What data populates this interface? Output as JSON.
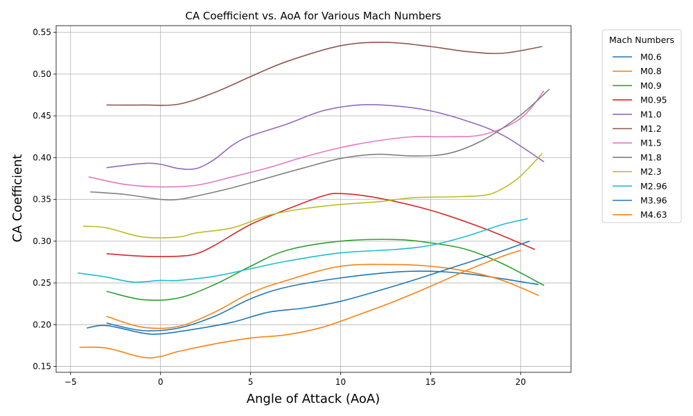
{
  "chart_data": {
    "type": "line",
    "title": "CA Coefficient vs. AoA for Various Mach Numbers",
    "xlabel": "Angle of Attack (AoA)",
    "ylabel": "CA Coefficient",
    "xlim": [
      -5.8,
      22.8
    ],
    "ylim": [
      0.143,
      0.558
    ],
    "xticks": [
      -5,
      0,
      5,
      10,
      15,
      20
    ],
    "xtick_labels": [
      "−5",
      "0",
      "5",
      "10",
      "15",
      "20"
    ],
    "yticks": [
      0.15,
      0.2,
      0.25,
      0.3,
      0.35,
      0.4,
      0.45,
      0.5,
      0.55
    ],
    "ytick_labels": [
      "0.15",
      "0.20",
      "0.25",
      "0.30",
      "0.35",
      "0.40",
      "0.45",
      "0.50",
      "0.55"
    ],
    "grid": true,
    "legend": {
      "title": "Mach Numbers",
      "placement": "outside-right"
    },
    "series": [
      {
        "name": "M0.6",
        "color": "#1f77b4",
        "x": [
          -3,
          -1,
          1,
          3,
          5,
          7,
          10,
          13,
          15,
          17,
          19,
          21
        ],
        "y": [
          0.202,
          0.193,
          0.196,
          0.21,
          0.231,
          0.245,
          0.256,
          0.263,
          0.264,
          0.261,
          0.255,
          0.248
        ]
      },
      {
        "name": "M0.8",
        "color": "#ff7f0e",
        "x": [
          -3,
          -1,
          1,
          3,
          5,
          7,
          10,
          13,
          15,
          17,
          19,
          21
        ],
        "y": [
          0.21,
          0.197,
          0.198,
          0.215,
          0.238,
          0.253,
          0.27,
          0.272,
          0.27,
          0.264,
          0.253,
          0.235
        ]
      },
      {
        "name": "M0.9",
        "color": "#2ca02c",
        "x": [
          -3,
          -1,
          1,
          3,
          5,
          7,
          10,
          13,
          15,
          17,
          19,
          21.3
        ],
        "y": [
          0.24,
          0.23,
          0.232,
          0.248,
          0.27,
          0.289,
          0.3,
          0.302,
          0.298,
          0.29,
          0.273,
          0.247
        ]
      },
      {
        "name": "M0.95",
        "color": "#d62728",
        "x": [
          -3,
          -1,
          1,
          2,
          3,
          5,
          7,
          9,
          10,
          12,
          15,
          18,
          20.8
        ],
        "y": [
          0.285,
          0.282,
          0.282,
          0.285,
          0.295,
          0.32,
          0.338,
          0.354,
          0.357,
          0.352,
          0.337,
          0.315,
          0.29
        ]
      },
      {
        "name": "M1.0",
        "color": "#9467bd",
        "x": [
          -3,
          -1,
          0,
          1,
          2,
          3,
          4,
          5,
          7,
          9,
          11,
          13,
          15,
          17,
          19,
          21.3
        ],
        "y": [
          0.388,
          0.393,
          0.392,
          0.387,
          0.387,
          0.398,
          0.415,
          0.426,
          0.44,
          0.456,
          0.463,
          0.462,
          0.456,
          0.444,
          0.427,
          0.395
        ]
      },
      {
        "name": "M1.2",
        "color": "#8c564b",
        "x": [
          -3,
          -1,
          1,
          3,
          5,
          7,
          10,
          12.5,
          15,
          17,
          19,
          21.2
        ],
        "y": [
          0.463,
          0.463,
          0.464,
          0.478,
          0.497,
          0.515,
          0.534,
          0.538,
          0.533,
          0.527,
          0.525,
          0.533
        ]
      },
      {
        "name": "M1.5",
        "color": "#e377c2",
        "x": [
          -4,
          -2,
          0,
          2,
          4,
          6,
          8,
          10,
          12,
          14,
          16,
          18,
          20,
          21.3
        ],
        "y": [
          0.377,
          0.368,
          0.365,
          0.367,
          0.377,
          0.388,
          0.401,
          0.412,
          0.42,
          0.425,
          0.425,
          0.428,
          0.447,
          0.48
        ]
      },
      {
        "name": "M1.8",
        "color": "#7f7f7f",
        "x": [
          -3.9,
          -2,
          0,
          1,
          2,
          4,
          6,
          8,
          10,
          12,
          14,
          16,
          18,
          20,
          21.6
        ],
        "y": [
          0.359,
          0.356,
          0.35,
          0.35,
          0.354,
          0.364,
          0.376,
          0.388,
          0.399,
          0.404,
          0.402,
          0.405,
          0.422,
          0.451,
          0.482
        ]
      },
      {
        "name": "M2.3",
        "color": "#bcbd22",
        "x": [
          -4.3,
          -3,
          -1,
          1,
          2,
          4,
          6,
          8,
          10,
          12,
          14,
          16,
          18,
          19,
          20,
          21.2
        ],
        "y": [
          0.318,
          0.316,
          0.305,
          0.305,
          0.31,
          0.316,
          0.331,
          0.339,
          0.344,
          0.347,
          0.352,
          0.353,
          0.355,
          0.363,
          0.378,
          0.405
        ]
      },
      {
        "name": "M2.96",
        "color": "#17becf",
        "x": [
          -4.6,
          -3,
          -1.5,
          0,
          1,
          3,
          5,
          7,
          10,
          13,
          15,
          17,
          19,
          20.4
        ],
        "y": [
          0.262,
          0.257,
          0.251,
          0.253,
          0.253,
          0.258,
          0.267,
          0.276,
          0.286,
          0.29,
          0.295,
          0.306,
          0.32,
          0.327
        ]
      },
      {
        "name": "M3.96",
        "color": "#1f77b4",
        "x": [
          -4.1,
          -3,
          -1,
          0,
          2,
          4,
          6,
          8,
          10,
          12,
          14,
          16,
          18,
          20.5
        ],
        "y": [
          0.196,
          0.199,
          0.19,
          0.189,
          0.195,
          0.203,
          0.215,
          0.22,
          0.228,
          0.24,
          0.253,
          0.267,
          0.281,
          0.3
        ]
      },
      {
        "name": "M4.63",
        "color": "#ff7f0e",
        "x": [
          -4.5,
          -3,
          -1,
          0,
          1,
          3,
          5,
          7,
          9,
          11,
          13,
          15,
          17,
          19,
          20
        ],
        "y": [
          0.173,
          0.172,
          0.161,
          0.162,
          0.168,
          0.177,
          0.184,
          0.188,
          0.197,
          0.212,
          0.228,
          0.246,
          0.265,
          0.282,
          0.289
        ]
      }
    ]
  }
}
